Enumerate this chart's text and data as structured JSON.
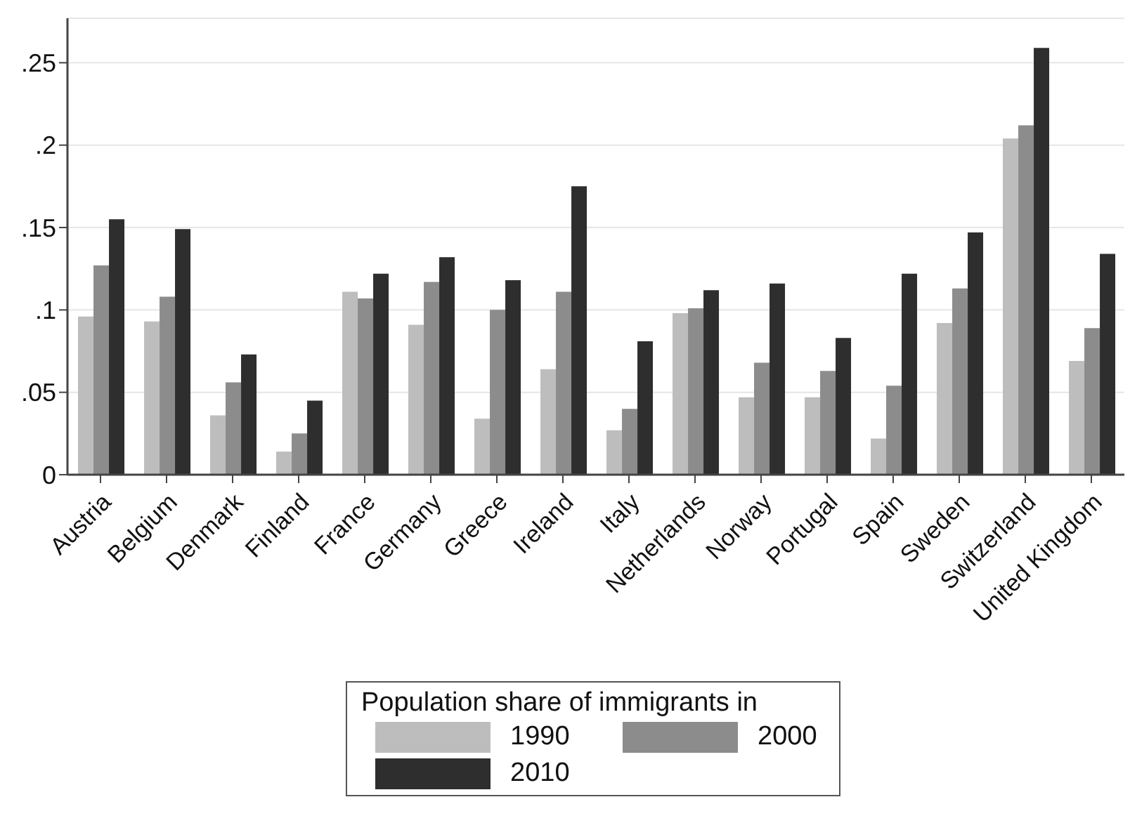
{
  "chart_data": {
    "type": "bar",
    "categories": [
      "Austria",
      "Belgium",
      "Denmark",
      "Finland",
      "France",
      "Germany",
      "Greece",
      "Ireland",
      "Italy",
      "Netherlands",
      "Norway",
      "Portugal",
      "Spain",
      "Sweden",
      "Switzerland",
      "United Kingdom"
    ],
    "series": [
      {
        "name": "1990",
        "color": "#bdbdbd",
        "values": [
          0.096,
          0.093,
          0.036,
          0.014,
          0.111,
          0.091,
          0.034,
          0.064,
          0.027,
          0.098,
          0.047,
          0.047,
          0.022,
          0.092,
          0.204,
          0.069
        ]
      },
      {
        "name": "2000",
        "color": "#8c8c8c",
        "values": [
          0.127,
          0.108,
          0.056,
          0.025,
          0.107,
          0.117,
          0.1,
          0.111,
          0.04,
          0.101,
          0.068,
          0.063,
          0.054,
          0.113,
          0.212,
          0.089
        ]
      },
      {
        "name": "2010",
        "color": "#2e2e2e",
        "values": [
          0.155,
          0.149,
          0.073,
          0.045,
          0.122,
          0.132,
          0.118,
          0.175,
          0.081,
          0.112,
          0.116,
          0.083,
          0.122,
          0.147,
          0.259,
          0.134
        ]
      }
    ],
    "legend_title": "Population share of immigrants in",
    "legend": "bottom",
    "grid": "y",
    "ylim": [
      0,
      0.277
    ],
    "yticks": [
      0,
      {
        "value": 0.05,
        "label": ".05"
      },
      {
        "value": 0.1,
        "label": ".1"
      },
      {
        "value": 0.15,
        "label": ".15"
      },
      {
        "value": 0.2,
        "label": ".2"
      },
      {
        "value": 0.25,
        "label": ".25"
      }
    ]
  }
}
